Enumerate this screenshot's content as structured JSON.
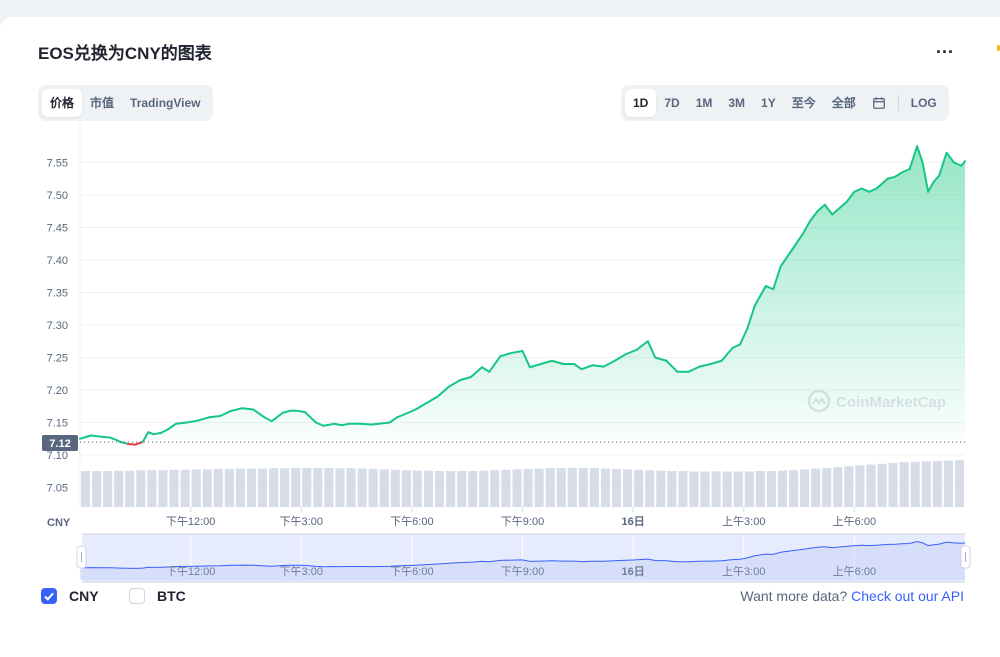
{
  "title": "EOS兑换为CNY的图表",
  "more_label": "...",
  "tabs_left": [
    {
      "label": "价格",
      "active": true
    },
    {
      "label": "市值",
      "active": false
    },
    {
      "label": "TradingView",
      "active": false
    }
  ],
  "tabs_right": [
    {
      "label": "1D",
      "active": true
    },
    {
      "label": "7D",
      "active": false
    },
    {
      "label": "1M",
      "active": false
    },
    {
      "label": "3M",
      "active": false
    },
    {
      "label": "1Y",
      "active": false
    },
    {
      "label": "至今",
      "active": false
    },
    {
      "label": "全部",
      "active": false
    }
  ],
  "calendar_icon": "calendar-icon",
  "log_label": "LOG",
  "watermark": "CoinMarketCap",
  "currency_label": "CNY",
  "current_price_label": "7.12",
  "colors": {
    "up": "#16c784",
    "down": "#ea3943",
    "accent": "#3861fb",
    "nav_line": "#3861fb"
  },
  "footer": {
    "cny_label": "CNY",
    "cny_checked": true,
    "btc_label": "BTC",
    "btc_checked": false,
    "api_text": "Want more data?",
    "api_link": "Check out our API"
  },
  "chart_data": {
    "type": "line",
    "ylim": [
      7.02,
      7.6
    ],
    "yticks": [
      7.05,
      7.1,
      7.15,
      7.2,
      7.25,
      7.3,
      7.35,
      7.4,
      7.45,
      7.5,
      7.55
    ],
    "ytick_labels": [
      "7.05",
      "7.10",
      "7.15",
      "7.20",
      "7.25",
      "7.30",
      "7.35",
      "7.40",
      "7.45",
      "7.50",
      "7.55"
    ],
    "xticks": [
      {
        "t": 3.0,
        "label": "下午12:00"
      },
      {
        "t": 6.0,
        "label": "下午3:00"
      },
      {
        "t": 9.0,
        "label": "下午6:00"
      },
      {
        "t": 12.0,
        "label": "下午9:00"
      },
      {
        "t": 15.0,
        "label": "16日"
      },
      {
        "t": 18.0,
        "label": "上午3:00"
      },
      {
        "t": 21.0,
        "label": "上午6:00"
      }
    ],
    "reference_price": 7.12,
    "series": [
      {
        "x": [
          0.0,
          0.3,
          0.6,
          0.8,
          0.95,
          1.1,
          1.3,
          1.5,
          1.7,
          1.85,
          2.0,
          2.2,
          2.4,
          2.6,
          2.9,
          3.2,
          3.5,
          3.8,
          4.1,
          4.4,
          4.7,
          5.0,
          5.2,
          5.5,
          5.7,
          5.9,
          6.1,
          6.4,
          6.6,
          6.9,
          7.1,
          7.3,
          7.6,
          7.9,
          8.1,
          8.4,
          8.6,
          8.9,
          9.1,
          9.4,
          9.7,
          10.0,
          10.3,
          10.6,
          10.9,
          11.1,
          11.4,
          11.7,
          12.0,
          12.2,
          12.5,
          12.8,
          13.1,
          13.4,
          13.6,
          13.9,
          14.2,
          14.5,
          14.8,
          15.1,
          15.4,
          15.6,
          15.9,
          16.2,
          16.5,
          16.8,
          17.1,
          17.4,
          17.7,
          17.9,
          18.1,
          18.3,
          18.6,
          18.8,
          19.0,
          19.3,
          19.6,
          19.8,
          20.0,
          20.2,
          20.4,
          20.6,
          20.8,
          21.0,
          21.2,
          21.4,
          21.6,
          21.9,
          22.1,
          22.3,
          22.5,
          22.7,
          22.85,
          23.0,
          23.15,
          23.3,
          23.5,
          23.7,
          23.9,
          24.0
        ],
        "y": [
          7.125,
          7.13,
          7.128,
          7.127,
          7.124,
          7.12,
          7.117,
          7.116,
          7.12,
          7.135,
          7.132,
          7.134,
          7.14,
          7.148,
          7.15,
          7.153,
          7.158,
          7.16,
          7.168,
          7.172,
          7.17,
          7.158,
          7.152,
          7.165,
          7.168,
          7.168,
          7.166,
          7.15,
          7.145,
          7.148,
          7.146,
          7.148,
          7.148,
          7.147,
          7.148,
          7.15,
          7.158,
          7.165,
          7.17,
          7.18,
          7.19,
          7.205,
          7.215,
          7.22,
          7.235,
          7.228,
          7.252,
          7.257,
          7.26,
          7.235,
          7.24,
          7.245,
          7.24,
          7.24,
          7.232,
          7.238,
          7.236,
          7.245,
          7.255,
          7.262,
          7.275,
          7.25,
          7.245,
          7.228,
          7.228,
          7.236,
          7.24,
          7.245,
          7.265,
          7.27,
          7.295,
          7.33,
          7.36,
          7.355,
          7.39,
          7.415,
          7.44,
          7.46,
          7.475,
          7.485,
          7.47,
          7.48,
          7.49,
          7.505,
          7.51,
          7.505,
          7.51,
          7.525,
          7.528,
          7.535,
          7.54,
          7.575,
          7.55,
          7.505,
          7.52,
          7.53,
          7.565,
          7.55,
          7.545,
          7.552
        ]
      }
    ],
    "volume": {
      "type": "bar",
      "values": [
        0.9,
        0.9,
        0.9,
        0.91,
        0.91,
        0.92,
        0.92,
        0.92,
        0.93,
        0.93,
        0.94,
        0.94,
        0.95,
        0.95,
        0.96,
        0.96,
        0.96,
        0.97,
        0.97,
        0.98,
        0.98,
        0.98,
        0.98,
        0.97,
        0.97,
        0.96,
        0.95,
        0.94,
        0.93,
        0.92,
        0.91,
        0.91,
        0.9,
        0.9,
        0.9,
        0.9,
        0.91,
        0.92,
        0.93,
        0.94,
        0.95,
        0.96,
        0.97,
        0.97,
        0.98,
        0.98,
        0.97,
        0.96,
        0.95,
        0.94,
        0.93,
        0.92,
        0.91,
        0.9,
        0.9,
        0.89,
        0.89,
        0.89,
        0.89,
        0.89,
        0.89,
        0.9,
        0.9,
        0.91,
        0.92,
        0.94,
        0.96,
        0.98,
        1.0,
        1.02,
        1.04,
        1.06,
        1.08,
        1.1,
        1.12,
        1.13,
        1.14,
        1.15,
        1.16,
        1.17
      ]
    },
    "navigator": {
      "xticks": [
        "下午12:00",
        "下午3:00",
        "下午6:00",
        "下午9:00",
        "16日",
        "上午3:00",
        "上午6:00"
      ]
    }
  }
}
